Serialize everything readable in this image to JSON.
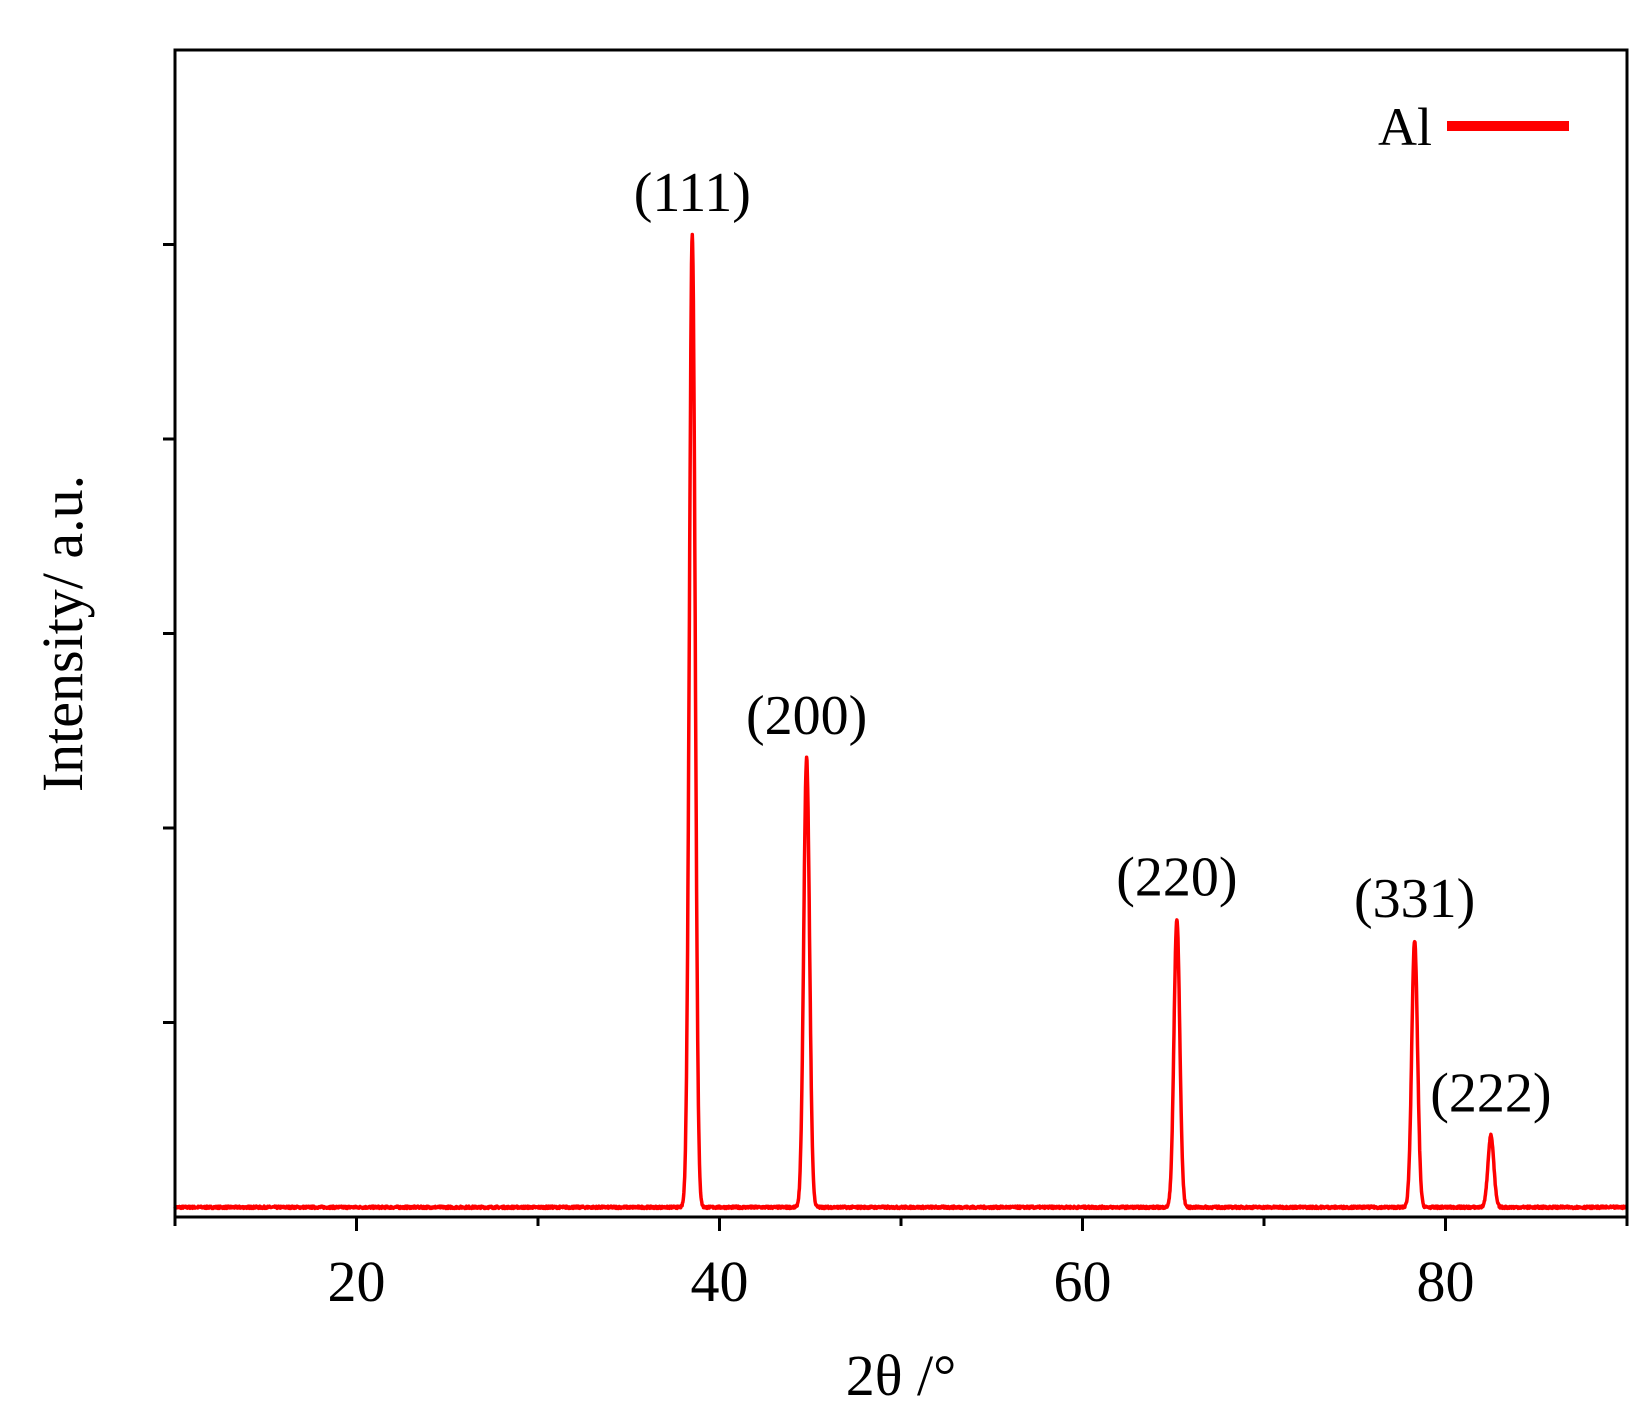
{
  "chart_data": {
    "type": "line",
    "title": "",
    "xlabel": "2θ /°",
    "ylabel": "Intensity/ a.u.",
    "xlim": [
      10,
      90
    ],
    "ylim": [
      0,
      6.0
    ],
    "x_ticks": [
      20,
      40,
      60,
      80
    ],
    "x_minor_ticks": [
      10,
      30,
      50,
      70,
      90
    ],
    "y_tick_labels_shown": false,
    "grid": false,
    "legend": {
      "position": "top-right"
    },
    "series": [
      {
        "name": "Al",
        "color": "#ff0000",
        "baseline": 0.05,
        "peaks": [
          {
            "x": 38.5,
            "y": 5.05,
            "label": "(111)"
          },
          {
            "x": 44.8,
            "y": 2.36,
            "label": "(200)"
          },
          {
            "x": 65.2,
            "y": 1.53,
            "label": "(220)"
          },
          {
            "x": 78.3,
            "y": 1.42,
            "label": "(331)"
          },
          {
            "x": 82.5,
            "y": 0.42,
            "label": "(222)"
          }
        ]
      }
    ]
  }
}
